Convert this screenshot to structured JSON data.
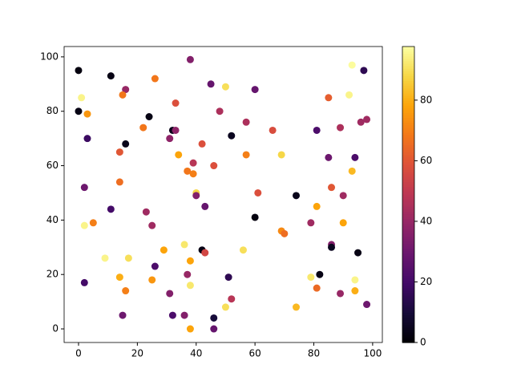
{
  "chart_data": {
    "type": "scatter",
    "colormap": "inferno",
    "x": [
      0,
      11,
      1,
      0,
      3,
      3,
      16,
      16,
      15,
      26,
      24,
      38,
      45,
      50,
      60,
      97,
      93,
      92,
      85,
      33,
      48,
      57,
      96,
      98,
      89,
      81,
      66,
      22,
      32,
      33,
      31,
      52,
      42,
      14,
      34,
      57,
      69,
      85,
      94,
      39,
      46,
      37,
      39,
      93,
      14,
      2,
      86,
      40,
      40,
      61,
      74,
      90,
      60,
      11,
      43,
      81,
      23,
      5,
      2,
      25,
      79,
      90,
      69,
      70,
      86,
      86,
      95,
      42,
      43,
      56,
      36,
      29,
      38,
      9,
      17,
      26,
      37,
      14,
      25,
      51,
      2,
      38,
      79,
      82,
      94,
      16,
      31,
      81,
      89,
      94,
      52,
      98,
      50,
      74,
      15,
      32,
      36,
      46,
      38,
      46
    ],
    "y": [
      95,
      93,
      85,
      80,
      79,
      70,
      68,
      88,
      86,
      92,
      78,
      99,
      90,
      89,
      88,
      95,
      97,
      86,
      85,
      83,
      80,
      76,
      76,
      77,
      74,
      73,
      73,
      74,
      73,
      73,
      70,
      71,
      68,
      65,
      64,
      64,
      64,
      63,
      63,
      61,
      60,
      58,
      57,
      58,
      54,
      52,
      52,
      50,
      49,
      50,
      49,
      49,
      41,
      44,
      45,
      45,
      43,
      39,
      38,
      38,
      39,
      39,
      36,
      35,
      31,
      30,
      28,
      29,
      28,
      29,
      31,
      29,
      25,
      26,
      26,
      23,
      20,
      19,
      18,
      19,
      17,
      16,
      19,
      20,
      18,
      14,
      13,
      15,
      13,
      14,
      11,
      9,
      8,
      8,
      5,
      5,
      5,
      4,
      0,
      0
    ],
    "c": [
      2,
      3,
      95,
      3,
      75,
      18,
      4,
      40,
      68,
      68,
      3,
      35,
      28,
      90,
      28,
      15,
      97,
      95,
      62,
      58,
      45,
      45,
      42,
      42,
      45,
      22,
      57,
      68,
      4,
      38,
      38,
      5,
      58,
      60,
      78,
      70,
      88,
      30,
      22,
      48,
      58,
      68,
      70,
      82,
      66,
      30,
      60,
      88,
      35,
      58,
      4,
      42,
      2,
      20,
      28,
      78,
      42,
      70,
      95,
      42,
      42,
      78,
      72,
      66,
      35,
      5,
      3,
      3,
      55,
      90,
      92,
      78,
      78,
      95,
      90,
      22,
      40,
      80,
      75,
      15,
      20,
      92,
      92,
      3,
      95,
      70,
      35,
      65,
      40,
      80,
      48,
      30,
      90,
      82,
      30,
      22,
      35,
      10,
      78,
      28
    ],
    "xlim": [
      -4.9,
      103.3
    ],
    "ylim": [
      -5.0,
      103.8
    ],
    "clim": [
      0,
      97.7
    ],
    "xticks": [
      0,
      20,
      40,
      60,
      80,
      100
    ],
    "yticks": [
      0,
      20,
      40,
      60,
      80,
      100
    ],
    "cticks": [
      0,
      20,
      40,
      60,
      80
    ]
  }
}
